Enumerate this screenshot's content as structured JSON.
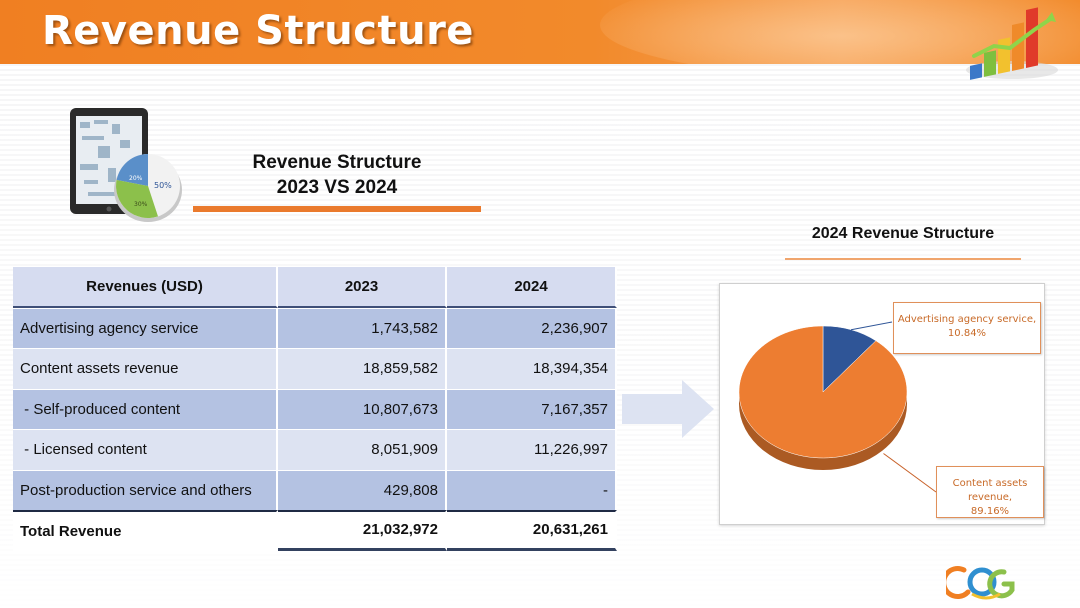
{
  "slide": {
    "title": "Revenue Structure",
    "subtitle_line1": "Revenue Structure",
    "subtitle_line2": "2023 VS 2024"
  },
  "icons": {
    "header_icon": "bar-chart-growth-icon",
    "tablet_icon": "tablet-pie-chart-icon",
    "arrow_icon": "right-arrow-icon",
    "logo_icon": "company-logo-icon",
    "tablet_pie_labels": [
      "50%",
      "20%",
      "30%"
    ]
  },
  "colors": {
    "header_orange": "#f07f22",
    "accent_orange": "#ea7a2d",
    "table_header_bg": "#d6dcf0",
    "table_band_dark": "#b4c2e2",
    "table_band_light": "#dde3f2",
    "pie_advertising": "#2f5597",
    "pie_content": "#ed7d31"
  },
  "table": {
    "headers": [
      "Revenues (USD)",
      "2023",
      "2024"
    ],
    "rows": [
      {
        "label": "Advertising agency service",
        "v2023": "1,743,582",
        "v2024": "2,236,907"
      },
      {
        "label": "Content assets revenue",
        "v2023": "18,859,582",
        "v2024": "18,394,354"
      },
      {
        "label": " - Self-produced content",
        "v2023": "10,807,673",
        "v2024": "7,167,357"
      },
      {
        "label": " - Licensed content",
        "v2023": "8,051,909",
        "v2024": "11,226,997"
      },
      {
        "label": "Post-production service and others",
        "v2023": "429,808",
        "v2024": "-"
      }
    ],
    "total": {
      "label": "Total Revenue",
      "v2023": "21,032,972",
      "v2024": "20,631,261"
    }
  },
  "chart_data": {
    "type": "pie",
    "title": "2024 Revenue Structure",
    "slices": [
      {
        "label": "Advertising agency service",
        "value": 10.84,
        "display": "10.84%",
        "color": "#2f5597"
      },
      {
        "label": "Content assets revenue",
        "value": 89.16,
        "display": "89.16%",
        "color": "#ed7d31"
      }
    ],
    "labels": [
      {
        "line1": "Advertising agency service,",
        "line2": "10.84%"
      },
      {
        "line1": "Content assets revenue,",
        "line2": "89.16%"
      }
    ]
  }
}
